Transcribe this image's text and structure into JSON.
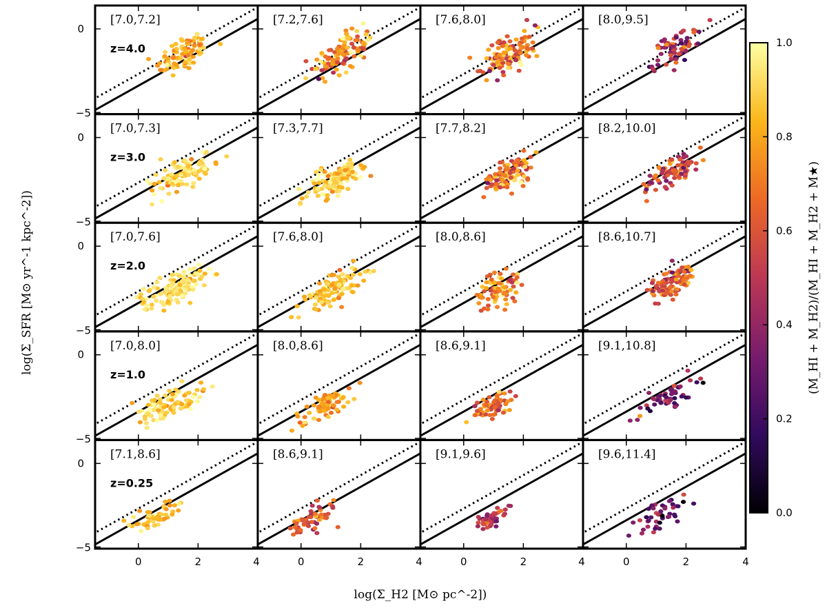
{
  "chart_data": {
    "type": "scatter",
    "layout": "5 rows x 4 columns grid of panels",
    "xlabel": "log(Σ_H2 [M⊙ pc^-2])",
    "ylabel": "log(Σ_SFR [M⊙ yr^-1 kpc^-2])",
    "xlim": [
      -1.45,
      4.0
    ],
    "ylim": [
      -5.1,
      1.4
    ],
    "xticks": [
      0,
      2,
      4
    ],
    "yticks": [
      0,
      -5
    ],
    "colorbar": {
      "label": "(M_HI + M_H2)/(M_HI + M_H2 + M★)",
      "range": [
        0.0,
        1.0
      ],
      "ticks": [
        "0.0",
        "0.2",
        "0.4",
        "0.6",
        "0.8",
        "1.0"
      ],
      "colormap": [
        "#000004",
        "#320a5e",
        "#781c6d",
        "#bc3754",
        "#ed6925",
        "#fbb61a",
        "#fcffa4"
      ]
    },
    "reference_lines": [
      {
        "name": "solid",
        "style": "solid",
        "slope": 1.0,
        "intercept": -3.4
      },
      {
        "name": "dotted",
        "style": "dotted",
        "slope": 1.0,
        "intercept": -2.7
      }
    ],
    "rows": [
      {
        "redshift": "z=4.0",
        "bins": [
          "[7.0,7.2]",
          "[7.2,7.6]",
          "[7.6,8.0]",
          "[8.0,9.5]"
        ]
      },
      {
        "redshift": "z=3.0",
        "bins": [
          "[7.0,7.3]",
          "[7.3,7.7]",
          "[7.7,8.2]",
          "[8.2,10.0]"
        ]
      },
      {
        "redshift": "z=2.0",
        "bins": [
          "[7.0,7.6]",
          "[7.6,8.0]",
          "[8.0,8.6]",
          "[8.6,10.7]"
        ]
      },
      {
        "redshift": "z=1.0",
        "bins": [
          "[7.0,8.0]",
          "[8.0,8.6]",
          "[8.6,9.1]",
          "[9.1,10.8]"
        ]
      },
      {
        "redshift": "z=0.25",
        "bins": [
          "[7.1,8.6]",
          "[8.6,9.1]",
          "[9.1,9.6]",
          "[9.6,11.4]"
        ]
      }
    ],
    "panel_clouds": [
      [
        {
          "n": 95,
          "xc": 1.5,
          "xs": 0.45,
          "yc": -1.5,
          "ys": 0.55,
          "slope": 0.8,
          "fmean": 0.82,
          "fsd": 0.08
        },
        {
          "n": 110,
          "xc": 1.4,
          "xs": 0.5,
          "yc": -1.5,
          "ys": 0.55,
          "slope": 0.8,
          "fmean": 0.76,
          "fsd": 0.12
        },
        {
          "n": 120,
          "xc": 1.5,
          "xs": 0.45,
          "yc": -1.5,
          "ys": 0.55,
          "slope": 0.8,
          "fmean": 0.68,
          "fsd": 0.14
        },
        {
          "n": 70,
          "xc": 1.6,
          "xs": 0.4,
          "yc": -1.1,
          "ys": 0.5,
          "slope": 0.8,
          "fmean": 0.45,
          "fsd": 0.15
        }
      ],
      [
        {
          "n": 110,
          "xc": 1.5,
          "xs": 0.5,
          "yc": -2.2,
          "ys": 0.5,
          "slope": 0.8,
          "fmean": 0.9,
          "fsd": 0.06
        },
        {
          "n": 120,
          "xc": 1.2,
          "xs": 0.5,
          "yc": -2.5,
          "ys": 0.45,
          "slope": 0.8,
          "fmean": 0.88,
          "fsd": 0.07
        },
        {
          "n": 110,
          "xc": 1.5,
          "xs": 0.45,
          "yc": -2.2,
          "ys": 0.45,
          "slope": 0.8,
          "fmean": 0.7,
          "fsd": 0.14
        },
        {
          "n": 90,
          "xc": 1.6,
          "xs": 0.45,
          "yc": -2.0,
          "ys": 0.45,
          "slope": 0.8,
          "fmean": 0.6,
          "fsd": 0.14
        }
      ],
      [
        {
          "n": 140,
          "xc": 1.3,
          "xs": 0.55,
          "yc": -2.5,
          "ys": 0.45,
          "slope": 0.7,
          "fmean": 0.92,
          "fsd": 0.05
        },
        {
          "n": 110,
          "xc": 1.0,
          "xs": 0.5,
          "yc": -2.6,
          "ys": 0.45,
          "slope": 0.8,
          "fmean": 0.86,
          "fsd": 0.07
        },
        {
          "n": 80,
          "xc": 1.2,
          "xs": 0.35,
          "yc": -2.6,
          "ys": 0.45,
          "slope": 0.8,
          "fmean": 0.72,
          "fsd": 0.12
        },
        {
          "n": 100,
          "xc": 1.5,
          "xs": 0.4,
          "yc": -2.2,
          "ys": 0.45,
          "slope": 0.9,
          "fmean": 0.62,
          "fsd": 0.12
        }
      ],
      [
        {
          "n": 100,
          "xc": 1.0,
          "xs": 0.6,
          "yc": -2.9,
          "ys": 0.4,
          "slope": 0.6,
          "fmean": 0.9,
          "fsd": 0.06
        },
        {
          "n": 75,
          "xc": 0.9,
          "xs": 0.45,
          "yc": -3.0,
          "ys": 0.4,
          "slope": 0.7,
          "fmean": 0.78,
          "fsd": 0.08
        },
        {
          "n": 70,
          "xc": 1.0,
          "xs": 0.35,
          "yc": -3.0,
          "ys": 0.35,
          "slope": 0.7,
          "fmean": 0.66,
          "fsd": 0.1
        },
        {
          "n": 55,
          "xc": 1.4,
          "xs": 0.5,
          "yc": -2.5,
          "ys": 0.35,
          "slope": 0.8,
          "fmean": 0.33,
          "fsd": 0.12
        }
      ],
      [
        {
          "n": 55,
          "xc": 0.6,
          "xs": 0.5,
          "yc": -3.2,
          "ys": 0.4,
          "slope": 0.8,
          "fmean": 0.82,
          "fsd": 0.08
        },
        {
          "n": 55,
          "xc": 0.4,
          "xs": 0.35,
          "yc": -3.4,
          "ys": 0.35,
          "slope": 0.8,
          "fmean": 0.62,
          "fsd": 0.1
        },
        {
          "n": 45,
          "xc": 0.9,
          "xs": 0.3,
          "yc": -3.3,
          "ys": 0.3,
          "slope": 0.8,
          "fmean": 0.48,
          "fsd": 0.1
        },
        {
          "n": 45,
          "xc": 1.3,
          "xs": 0.55,
          "yc": -3.0,
          "ys": 0.4,
          "slope": 0.8,
          "fmean": 0.3,
          "fsd": 0.12
        }
      ]
    ]
  }
}
